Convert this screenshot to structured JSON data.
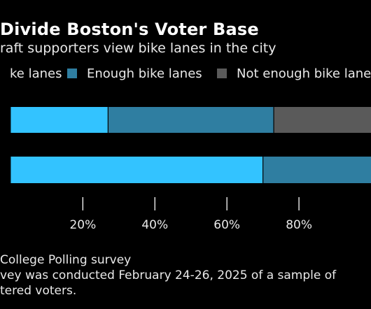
{
  "chart_data": {
    "type": "bar",
    "orientation": "horizontal",
    "stacked": true,
    "title": "Divide Boston's Voter Base",
    "subtitle": "raft supporters view bike lanes in the city",
    "categories": [
      "",
      ""
    ],
    "series": [
      {
        "name": "ke lanes",
        "color": "#33c3ff",
        "values": [
          27,
          70
        ]
      },
      {
        "name": "Enough bike lanes",
        "color": "#2f7ea1",
        "values": [
          46,
          30
        ]
      },
      {
        "name": "Not enough bike lane",
        "color": "#5a5a5a",
        "values": [
          27,
          0
        ]
      }
    ],
    "xlabel": "",
    "ylabel": "",
    "xlim": [
      -3,
      100
    ],
    "ticks": [
      20,
      40,
      60,
      80
    ],
    "tick_labels": [
      "20%",
      "40%",
      "60%",
      "80%"
    ],
    "legend_position": "top",
    "grid": false
  },
  "footer": {
    "line1": "College Polling survey",
    "line2": "vey was conducted February 24-26, 2025 of a sample of",
    "line3": "tered voters."
  }
}
